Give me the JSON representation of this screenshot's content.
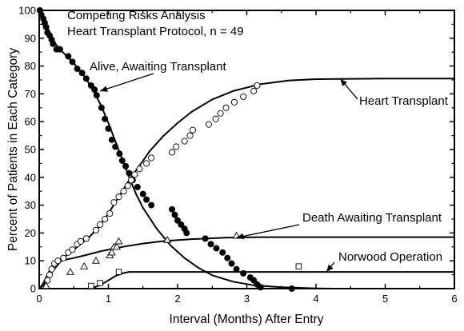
{
  "chart_data": {
    "type": "line",
    "title": "Competing Risks Analysis",
    "subtitle": "Heart Transplant Protocol, n = 49",
    "xlabel": "Interval (Months) After Entry",
    "ylabel": "Percent of Patients in Each Category",
    "xlim": [
      0,
      6
    ],
    "ylim": [
      0,
      100
    ],
    "x_ticks": [
      "0",
      "1",
      "2",
      "3",
      "4",
      "5",
      "6"
    ],
    "y_ticks": [
      "0",
      "10",
      "20",
      "30",
      "40",
      "50",
      "60",
      "70",
      "80",
      "90",
      "100"
    ],
    "grid": false,
    "legend": "none",
    "series": [
      {
        "name": "Alive, Awaiting Transplant",
        "marker": "filled-circle",
        "color": "#000000",
        "curve": [
          [
            0,
            100
          ],
          [
            0.05,
            98
          ],
          [
            0.1,
            95
          ],
          [
            0.15,
            92
          ],
          [
            0.2,
            89
          ],
          [
            0.3,
            86
          ],
          [
            0.4,
            83.5
          ],
          [
            0.5,
            81
          ],
          [
            0.6,
            78
          ],
          [
            0.7,
            74.5
          ],
          [
            0.8,
            70.5
          ],
          [
            0.9,
            65.5
          ],
          [
            1.0,
            59.5
          ],
          [
            1.1,
            53
          ],
          [
            1.2,
            46.5
          ],
          [
            1.3,
            40
          ],
          [
            1.4,
            34
          ],
          [
            1.5,
            29
          ],
          [
            1.7,
            21.5
          ],
          [
            1.9,
            15.5
          ],
          [
            2.1,
            11
          ],
          [
            2.3,
            7.5
          ],
          [
            2.5,
            4.8
          ],
          [
            2.8,
            2.5
          ],
          [
            3.1,
            1.2
          ],
          [
            3.5,
            0.5
          ],
          [
            4.0,
            0.1
          ],
          [
            4.3,
            0
          ]
        ],
        "points": [
          [
            0.01,
            100
          ],
          [
            0.03,
            98.5
          ],
          [
            0.06,
            97
          ],
          [
            0.08,
            95.5
          ],
          [
            0.1,
            94
          ],
          [
            0.12,
            92
          ],
          [
            0.15,
            91
          ],
          [
            0.18,
            89.5
          ],
          [
            0.2,
            88
          ],
          [
            0.25,
            86
          ],
          [
            0.3,
            86
          ],
          [
            0.42,
            83.5
          ],
          [
            0.48,
            81.5
          ],
          [
            0.55,
            79
          ],
          [
            0.62,
            77.5
          ],
          [
            0.68,
            75.5
          ],
          [
            0.75,
            73
          ],
          [
            0.8,
            71.5
          ],
          [
            0.83,
            69.5
          ],
          [
            0.9,
            65
          ],
          [
            0.95,
            61
          ],
          [
            1.0,
            57.5
          ],
          [
            1.05,
            53.5
          ],
          [
            1.1,
            51
          ],
          [
            1.16,
            48.5
          ],
          [
            1.2,
            46
          ],
          [
            1.25,
            44
          ],
          [
            1.3,
            41.5
          ],
          [
            1.35,
            39
          ],
          [
            1.42,
            36.5
          ],
          [
            1.5,
            34
          ],
          [
            1.55,
            32
          ],
          [
            1.62,
            30
          ],
          [
            1.92,
            28.5
          ],
          [
            1.96,
            26.5
          ],
          [
            2.0,
            24.5
          ],
          [
            2.05,
            23
          ],
          [
            2.1,
            21.5
          ],
          [
            2.13,
            20
          ],
          [
            2.4,
            18
          ],
          [
            2.48,
            16
          ],
          [
            2.56,
            14.5
          ],
          [
            2.65,
            13
          ],
          [
            2.72,
            11
          ],
          [
            2.78,
            9
          ],
          [
            2.85,
            7
          ],
          [
            2.95,
            5.5
          ],
          [
            3.05,
            4
          ],
          [
            3.1,
            3
          ],
          [
            3.15,
            1.5
          ],
          [
            3.2,
            0.5
          ],
          [
            3.65,
            0
          ]
        ]
      },
      {
        "name": "Heart Transplant",
        "marker": "open-circle",
        "color": "#000000",
        "curve": [
          [
            0,
            0
          ],
          [
            0.05,
            1
          ],
          [
            0.1,
            3
          ],
          [
            0.2,
            6.5
          ],
          [
            0.3,
            9.5
          ],
          [
            0.4,
            12
          ],
          [
            0.5,
            14
          ],
          [
            0.6,
            16
          ],
          [
            0.7,
            18
          ],
          [
            0.8,
            20.5
          ],
          [
            0.9,
            23.5
          ],
          [
            1.0,
            27
          ],
          [
            1.1,
            31
          ],
          [
            1.2,
            35
          ],
          [
            1.3,
            39
          ],
          [
            1.4,
            42.5
          ],
          [
            1.5,
            46
          ],
          [
            1.6,
            49.5
          ],
          [
            1.8,
            55
          ],
          [
            2.0,
            59.5
          ],
          [
            2.2,
            63.5
          ],
          [
            2.5,
            68
          ],
          [
            2.8,
            71
          ],
          [
            3.2,
            73.5
          ],
          [
            3.6,
            74.8
          ],
          [
            4.0,
            75.3
          ],
          [
            4.5,
            75.4
          ],
          [
            5.0,
            75.5
          ],
          [
            6.0,
            75.5
          ]
        ],
        "points": [
          [
            0.12,
            3
          ],
          [
            0.15,
            5
          ],
          [
            0.18,
            7
          ],
          [
            0.22,
            9
          ],
          [
            0.27,
            10
          ],
          [
            0.35,
            11
          ],
          [
            0.42,
            13
          ],
          [
            0.48,
            14
          ],
          [
            0.55,
            16
          ],
          [
            0.6,
            17
          ],
          [
            0.68,
            18
          ],
          [
            0.82,
            21
          ],
          [
            0.88,
            23
          ],
          [
            0.95,
            25
          ],
          [
            1.02,
            27
          ],
          [
            1.08,
            31
          ],
          [
            1.15,
            33
          ],
          [
            1.22,
            35
          ],
          [
            1.28,
            37
          ],
          [
            1.33,
            39
          ],
          [
            1.38,
            41
          ],
          [
            1.45,
            43
          ],
          [
            1.55,
            45
          ],
          [
            1.62,
            47
          ],
          [
            1.92,
            49
          ],
          [
            1.98,
            51
          ],
          [
            2.1,
            53
          ],
          [
            2.18,
            55
          ],
          [
            2.22,
            57
          ],
          [
            2.45,
            59
          ],
          [
            2.55,
            61
          ],
          [
            2.62,
            63
          ],
          [
            2.7,
            65
          ],
          [
            2.82,
            67
          ],
          [
            2.95,
            69
          ],
          [
            3.1,
            71
          ],
          [
            3.15,
            73
          ]
        ]
      },
      {
        "name": "Death Awaiting Transplant",
        "marker": "open-triangle",
        "color": "#000000",
        "curve": [
          [
            0,
            0
          ],
          [
            0.05,
            1.5
          ],
          [
            0.1,
            4
          ],
          [
            0.15,
            6.5
          ],
          [
            0.2,
            8.5
          ],
          [
            0.3,
            10
          ],
          [
            0.5,
            11
          ],
          [
            0.7,
            12.2
          ],
          [
            0.9,
            13.5
          ],
          [
            1.2,
            15
          ],
          [
            1.5,
            16.2
          ],
          [
            1.8,
            17.1
          ],
          [
            2.2,
            17.8
          ],
          [
            2.7,
            18.3
          ],
          [
            3.2,
            18.5
          ],
          [
            4.0,
            18.5
          ],
          [
            6.0,
            18.5
          ]
        ],
        "points": [
          [
            0.1,
            1
          ],
          [
            0.45,
            6
          ],
          [
            0.65,
            8
          ],
          [
            0.82,
            10
          ],
          [
            1.02,
            12
          ],
          [
            1.05,
            13
          ],
          [
            1.08,
            15
          ],
          [
            1.12,
            15
          ],
          [
            1.15,
            17
          ],
          [
            1.85,
            17.5
          ],
          [
            2.85,
            19
          ]
        ]
      },
      {
        "name": "Norwood Operation",
        "marker": "open-square",
        "color": "#000000",
        "curve": [
          [
            0,
            0
          ],
          [
            0.7,
            0
          ],
          [
            0.8,
            0.5
          ],
          [
            0.9,
            1.5
          ],
          [
            1.0,
            3
          ],
          [
            1.1,
            4.5
          ],
          [
            1.2,
            5.5
          ],
          [
            1.3,
            6
          ],
          [
            1.5,
            6
          ],
          [
            6.0,
            6
          ]
        ],
        "points": [
          [
            0.75,
            1
          ],
          [
            0.88,
            2
          ],
          [
            1.15,
            6
          ],
          [
            3.75,
            8
          ]
        ]
      }
    ],
    "annotations": [
      {
        "text": "Alive, Awaiting Transplant",
        "points_to": [
          0.88,
          71
        ]
      },
      {
        "text": "Heart Transplant",
        "points_to": [
          4.35,
          75.4
        ]
      },
      {
        "text": "Death Awaiting Transplant",
        "points_to": [
          2.85,
          18.3
        ]
      },
      {
        "text": "Norwood Operation",
        "points_to": [
          4.15,
          6
        ]
      }
    ]
  }
}
